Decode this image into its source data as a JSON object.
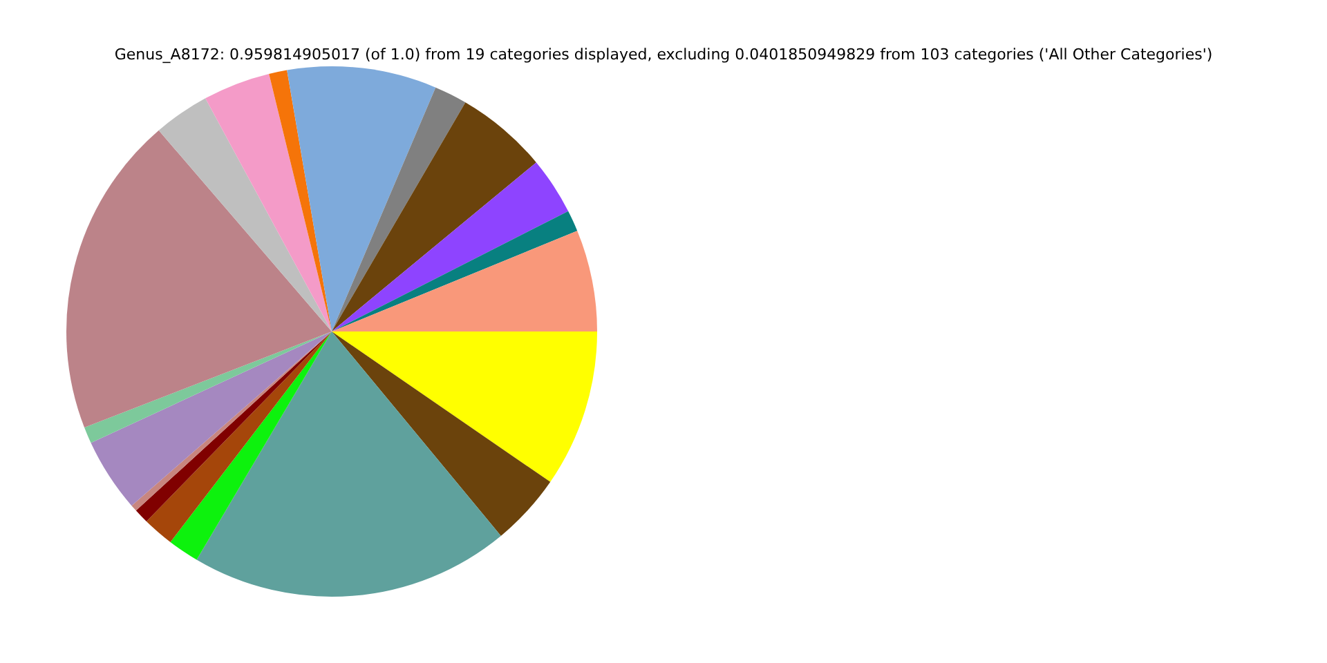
{
  "chart_data": {
    "type": "pie",
    "title": "Genus_A8172: 0.959814905017 (of 1.0) from 19 categories displayed, excluding 0.0401850949829 from 103 categories ('All Other Categories')",
    "categories": [
      null,
      null,
      null,
      null,
      null,
      null,
      null,
      null,
      null,
      null,
      null,
      null,
      null,
      null,
      null,
      null,
      null,
      null,
      null
    ],
    "values": [
      6.2,
      1.3,
      3.5,
      5.6,
      2.0,
      9.1,
      1.1,
      4.1,
      3.4,
      19.6,
      1.0,
      4.5,
      0.4,
      0.9,
      1.9,
      1.9,
      19.5,
      4.4,
      9.6
    ],
    "colors": [
      "#f9987a",
      "#088080",
      "#8e44ff",
      "#6b430c",
      "#808080",
      "#7eaadb",
      "#f57409",
      "#f49bc8",
      "#bfbfbf",
      "#bc8389",
      "#7dc99b",
      "#a588c0",
      "#c8867f",
      "#800000",
      "#a5460a",
      "#0df20d",
      "#5fa19d",
      "#6b430c",
      "#ffff00"
    ]
  }
}
